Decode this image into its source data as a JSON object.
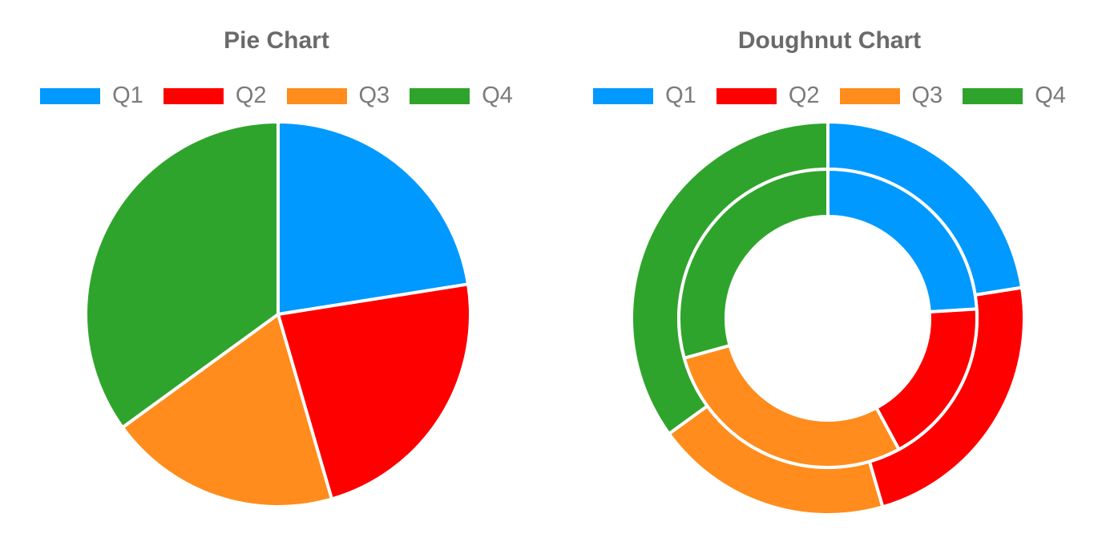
{
  "page": {
    "background_color": "#ffffff",
    "text_color_title": "#6a6a6a",
    "text_color_legend": "#7b7b7b",
    "slice_border_color": "#ffffff"
  },
  "chart_data": [
    {
      "type": "pie",
      "title": "Pie Chart",
      "categories": [
        "Q1",
        "Q2",
        "Q3",
        "Q4"
      ],
      "values_pct": [
        22.5,
        23.0,
        19.5,
        35.0
      ],
      "colors": [
        "#0099ff",
        "#ff0000",
        "#ff8c1c",
        "#2fa42c"
      ],
      "legend_position": "top",
      "start_angle_deg": 0,
      "direction": "clockwise",
      "grid": "off"
    },
    {
      "type": "doughnut",
      "title": "Doughnut Chart",
      "categories": [
        "Q1",
        "Q2",
        "Q3",
        "Q4"
      ],
      "series": [
        {
          "name": "outer",
          "values_pct": [
            22.5,
            23.0,
            19.5,
            35.0
          ]
        },
        {
          "name": "inner",
          "values_pct": [
            24.0,
            18.1,
            28.6,
            29.3
          ]
        }
      ],
      "colors": [
        "#0099ff",
        "#ff0000",
        "#ff8c1c",
        "#2fa42c"
      ],
      "legend_position": "top",
      "start_angle_deg": 0,
      "direction": "clockwise",
      "grid": "off"
    }
  ]
}
